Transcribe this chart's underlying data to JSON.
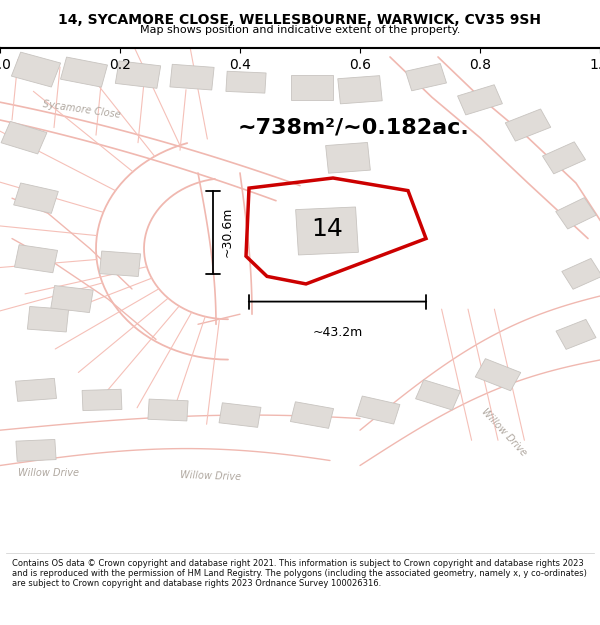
{
  "title_line1": "14, SYCAMORE CLOSE, WELLESBOURNE, WARWICK, CV35 9SH",
  "title_line2": "Map shows position and indicative extent of the property.",
  "footer_text": "Contains OS data © Crown copyright and database right 2021. This information is subject to Crown copyright and database rights 2023 and is reproduced with the permission of HM Land Registry. The polygons (including the associated geometry, namely x, y co-ordinates) are subject to Crown copyright and database rights 2023 Ordnance Survey 100026316.",
  "area_label": "~738m²/~0.182ac.",
  "number_label": "14",
  "dim_vertical": "~30.6m",
  "dim_horizontal": "~43.2m",
  "map_bg": "#f8f8f8",
  "road_color": "#f0b8b0",
  "road_lw": 1.5,
  "building_fill": "#e0dcd8",
  "building_edge": "#c8c4c0",
  "poly_color": "#cc0000",
  "poly_lw": 2.5,
  "street_color": "#b0a8a0",
  "title_color": "#000000",
  "title_fontsize": 10,
  "subtitle_fontsize": 8,
  "area_fontsize": 16,
  "number_fontsize": 18,
  "dim_fontsize": 9,
  "street_fontsize": 7,
  "footer_fontsize": 6.0
}
